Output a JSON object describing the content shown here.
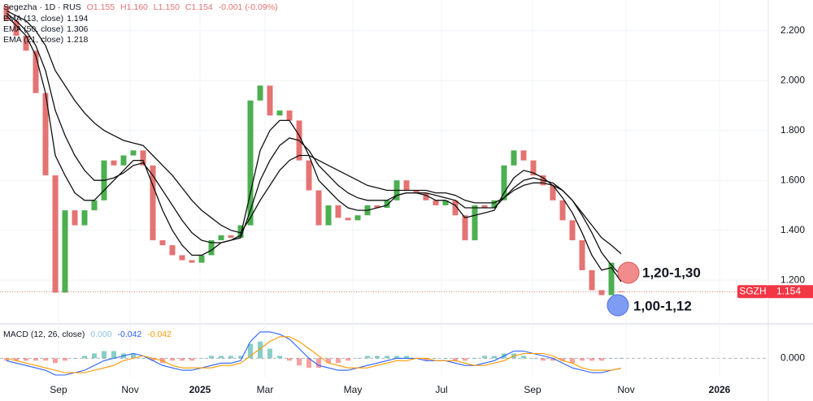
{
  "chart_data": {
    "type": "candlestick",
    "title": "Segezha · 1D · RUS",
    "ohlc": [
      "O1.155",
      "H1.160",
      "L1.150",
      "C1.154"
    ],
    "change": "-0.001 (-0.09%)",
    "symbol": "SGZH",
    "up_color": "#4caf50",
    "down_color": "#e57373",
    "open": [
      2.3,
      2.24,
      2.18,
      2.12,
      1.95,
      1.62,
      1.15,
      1.48,
      1.42,
      1.48,
      1.52,
      1.68,
      1.66,
      1.7,
      1.72,
      1.66,
      1.36,
      1.34,
      1.3,
      1.28,
      1.27,
      1.3,
      1.36,
      1.38,
      1.37,
      1.42,
      1.92,
      1.98,
      1.86,
      1.88,
      1.84,
      1.68,
      1.56,
      1.42,
      1.5,
      1.45,
      1.44,
      1.46,
      1.5,
      1.49,
      1.52,
      1.6,
      1.56,
      1.55,
      1.52,
      1.5,
      1.52,
      1.46,
      1.36,
      1.5,
      1.49,
      1.52,
      1.66,
      1.72,
      1.68,
      1.62,
      1.58,
      1.52,
      1.44,
      1.36,
      1.24,
      1.16,
      1.14,
      1.155
    ],
    "close": [
      2.24,
      2.18,
      2.12,
      1.95,
      1.62,
      1.15,
      1.48,
      1.42,
      1.48,
      1.52,
      1.68,
      1.66,
      1.7,
      1.72,
      1.66,
      1.36,
      1.34,
      1.3,
      1.28,
      1.27,
      1.3,
      1.36,
      1.38,
      1.37,
      1.42,
      1.92,
      1.98,
      1.86,
      1.88,
      1.84,
      1.68,
      1.56,
      1.42,
      1.5,
      1.45,
      1.44,
      1.46,
      1.5,
      1.49,
      1.52,
      1.6,
      1.56,
      1.55,
      1.52,
      1.5,
      1.52,
      1.46,
      1.36,
      1.5,
      1.49,
      1.52,
      1.66,
      1.72,
      1.68,
      1.62,
      1.58,
      1.52,
      1.44,
      1.36,
      1.24,
      1.16,
      1.14,
      1.27,
      1.154
    ],
    "series": [
      {
        "name": "EMA (13, close)",
        "color": "#111111",
        "values": [
          2.26,
          2.22,
          2.18,
          2.1,
          1.95,
          1.7,
          1.62,
          1.55,
          1.52,
          1.52,
          1.56,
          1.6,
          1.64,
          1.68,
          1.68,
          1.58,
          1.48,
          1.4,
          1.34,
          1.3,
          1.3,
          1.32,
          1.35,
          1.36,
          1.38,
          1.55,
          1.72,
          1.8,
          1.84,
          1.84,
          1.78,
          1.7,
          1.6,
          1.56,
          1.52,
          1.49,
          1.48,
          1.48,
          1.49,
          1.5,
          1.54,
          1.55,
          1.55,
          1.54,
          1.52,
          1.52,
          1.5,
          1.45,
          1.46,
          1.47,
          1.48,
          1.55,
          1.61,
          1.64,
          1.63,
          1.61,
          1.58,
          1.53,
          1.47,
          1.39,
          1.3,
          1.24,
          1.25,
          1.194
        ]
      },
      {
        "name": "EMA (50, close)",
        "color": "#111111",
        "values": [
          2.28,
          2.26,
          2.24,
          2.2,
          2.14,
          2.04,
          1.98,
          1.92,
          1.87,
          1.83,
          1.8,
          1.78,
          1.76,
          1.75,
          1.74,
          1.7,
          1.66,
          1.62,
          1.57,
          1.52,
          1.48,
          1.45,
          1.42,
          1.4,
          1.39,
          1.45,
          1.52,
          1.58,
          1.64,
          1.68,
          1.7,
          1.7,
          1.68,
          1.66,
          1.64,
          1.62,
          1.6,
          1.58,
          1.57,
          1.56,
          1.56,
          1.56,
          1.56,
          1.56,
          1.55,
          1.55,
          1.54,
          1.52,
          1.51,
          1.51,
          1.51,
          1.53,
          1.56,
          1.58,
          1.59,
          1.59,
          1.58,
          1.56,
          1.52,
          1.47,
          1.42,
          1.37,
          1.34,
          1.306
        ]
      },
      {
        "name": "EMA (21, close)",
        "color": "#111111",
        "values": [
          2.27,
          2.24,
          2.2,
          2.14,
          2.04,
          1.88,
          1.78,
          1.7,
          1.64,
          1.6,
          1.6,
          1.61,
          1.63,
          1.66,
          1.67,
          1.62,
          1.56,
          1.5,
          1.44,
          1.39,
          1.36,
          1.35,
          1.35,
          1.36,
          1.37,
          1.48,
          1.6,
          1.68,
          1.74,
          1.77,
          1.76,
          1.72,
          1.66,
          1.62,
          1.58,
          1.55,
          1.53,
          1.52,
          1.52,
          1.52,
          1.54,
          1.55,
          1.55,
          1.55,
          1.54,
          1.53,
          1.52,
          1.49,
          1.49,
          1.49,
          1.49,
          1.53,
          1.57,
          1.6,
          1.61,
          1.6,
          1.59,
          1.56,
          1.52,
          1.46,
          1.39,
          1.31,
          1.26,
          1.218
        ]
      }
    ],
    "ylim": [
      1.028,
      2.323
    ],
    "yticks": [
      {
        "value": 1.2,
        "label": "1.200"
      },
      {
        "value": 1.4,
        "label": "1.400"
      },
      {
        "value": 1.6,
        "label": "1.600"
      },
      {
        "value": 1.8,
        "label": "1.800"
      },
      {
        "value": 2.0,
        "label": "2.000"
      },
      {
        "value": 2.2,
        "label": "2.200"
      }
    ],
    "xlim": [
      -0.667,
      78.08
    ],
    "xticks": [
      {
        "value": 5.33,
        "label": "Sep"
      },
      {
        "value": 12.67,
        "label": "Nov"
      },
      {
        "value": 19.83,
        "label": "2025"
      },
      {
        "value": 26.5,
        "label": "Mar"
      },
      {
        "value": 35.5,
        "label": "May"
      },
      {
        "value": 44.58,
        "label": "Jul"
      },
      {
        "value": 53.92,
        "label": "Sep"
      },
      {
        "value": 63.5,
        "label": "Nov"
      },
      {
        "value": 73.08,
        "label": "2026"
      }
    ],
    "grid": true,
    "annotations": [
      {
        "label": "1,20-1,30",
        "color": "#f28b8b"
      },
      {
        "label": "1,00-1,12",
        "color": "#7f9cf5"
      }
    ],
    "macd": {
      "name": "MACD (12, 26, close)",
      "legend_values": [
        "0.000",
        "-0.042",
        "-0.042"
      ],
      "histogram": [
        -0.01,
        -0.01,
        -0.01,
        -0.01,
        -0.01,
        -0.02,
        -0.01,
        0.0,
        0.01,
        0.02,
        0.03,
        0.03,
        0.02,
        0.02,
        0.0,
        -0.01,
        -0.02,
        -0.01,
        -0.01,
        -0.01,
        0.0,
        0.01,
        0.01,
        0.01,
        0.01,
        0.06,
        0.07,
        0.04,
        0.01,
        -0.01,
        -0.03,
        -0.04,
        -0.04,
        -0.02,
        -0.02,
        -0.01,
        0.0,
        0.01,
        0.01,
        0.01,
        0.01,
        0.01,
        0.0,
        -0.01,
        0.0,
        0.0,
        -0.01,
        -0.01,
        0.0,
        0.01,
        0.01,
        0.02,
        0.02,
        0.01,
        0.0,
        -0.01,
        -0.01,
        -0.01,
        -0.02,
        -0.01,
        -0.01,
        -0.01,
        0.0,
        0
      ],
      "histogram_colors": [
        "#26a69a",
        "#ef5350"
      ],
      "series": [
        {
          "name": "MACD",
          "color": "#2962ff",
          "values": [
            -0.01,
            -0.02,
            -0.03,
            -0.04,
            -0.05,
            -0.07,
            -0.07,
            -0.06,
            -0.05,
            -0.03,
            -0.01,
            0.0,
            0.01,
            0.02,
            0.01,
            -0.01,
            -0.03,
            -0.04,
            -0.05,
            -0.05,
            -0.04,
            -0.03,
            -0.02,
            -0.02,
            -0.01,
            0.07,
            0.11,
            0.11,
            0.1,
            0.08,
            0.04,
            0.0,
            -0.03,
            -0.04,
            -0.05,
            -0.05,
            -0.04,
            -0.03,
            -0.02,
            -0.01,
            0.0,
            0.0,
            0.0,
            -0.01,
            -0.01,
            -0.01,
            -0.02,
            -0.03,
            -0.03,
            -0.02,
            -0.01,
            0.01,
            0.03,
            0.03,
            0.02,
            0.01,
            0.0,
            -0.02,
            -0.04,
            -0.05,
            -0.06,
            -0.06,
            -0.05,
            -0.042
          ]
        },
        {
          "name": "Signal",
          "color": "#ff9800",
          "values": [
            0.0,
            -0.01,
            -0.02,
            -0.03,
            -0.04,
            -0.05,
            -0.06,
            -0.06,
            -0.06,
            -0.05,
            -0.04,
            -0.03,
            -0.01,
            0.0,
            0.01,
            0.0,
            -0.01,
            -0.03,
            -0.04,
            -0.04,
            -0.04,
            -0.04,
            -0.03,
            -0.03,
            -0.02,
            0.01,
            0.04,
            0.07,
            0.09,
            0.09,
            0.07,
            0.04,
            0.01,
            -0.02,
            -0.03,
            -0.04,
            -0.04,
            -0.04,
            -0.03,
            -0.02,
            -0.01,
            -0.01,
            0.0,
            0.0,
            -0.01,
            -0.01,
            -0.01,
            -0.02,
            -0.03,
            -0.03,
            -0.02,
            -0.01,
            0.01,
            0.02,
            0.02,
            0.02,
            0.01,
            -0.01,
            -0.02,
            -0.04,
            -0.05,
            -0.05,
            -0.05,
            -0.042
          ]
        }
      ],
      "ylim": [
        -0.08,
        0.14
      ],
      "yticks": [
        {
          "value": 0,
          "label": "0.000"
        }
      ]
    }
  }
}
